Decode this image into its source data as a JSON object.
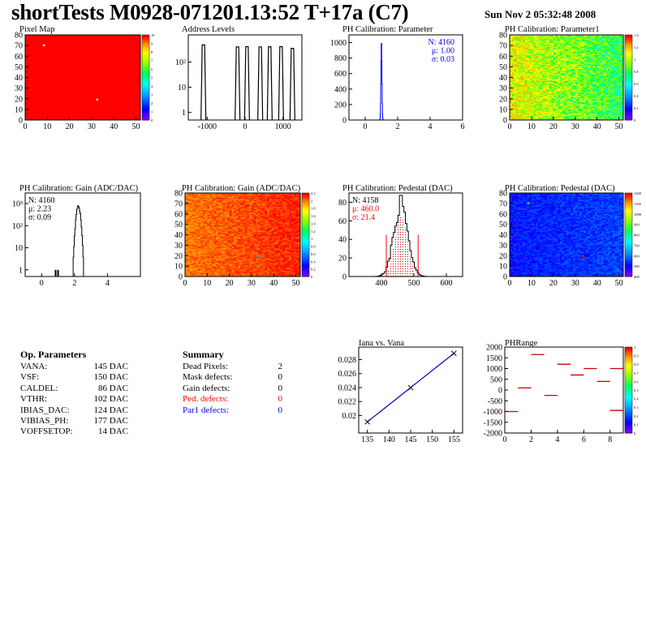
{
  "header": {
    "title": "shortTests M0928-071201.13:52 T+17a (C7)",
    "date": "Sun Nov  2 05:32:48 2008"
  },
  "op_parameters": {
    "title": "Op. Parameters",
    "rows": [
      {
        "name": "VANA:",
        "value": "145 DAC"
      },
      {
        "name": "VSF:",
        "value": "150 DAC"
      },
      {
        "name": "CALDEL:",
        "value": "86 DAC"
      },
      {
        "name": "VTHR:",
        "value": "102 DAC"
      },
      {
        "name": "IBIAS_DAC:",
        "value": "124 DAC"
      },
      {
        "name": "VIBIAS_PH:",
        "value": "177 DAC"
      },
      {
        "name": "VOFFSETOP:",
        "value": "14 DAC"
      }
    ]
  },
  "summary": {
    "title": "Summary",
    "rows": [
      {
        "name": "Dead Pixels:",
        "value": "2",
        "color": "#000000"
      },
      {
        "name": "Mask defects:",
        "value": "0",
        "color": "#000000"
      },
      {
        "name": "Gain defects:",
        "value": "0",
        "color": "#000000"
      },
      {
        "name": "Ped. defects:",
        "value": "0",
        "color": "#ff0000"
      },
      {
        "name": "Par1 defects:",
        "value": "0",
        "color": "#0000ff"
      }
    ]
  },
  "chart_data": [
    {
      "id": "pixel-map",
      "type": "heatmap",
      "title": "Pixel Map",
      "xlim": [
        0,
        52
      ],
      "ylim": [
        0,
        80
      ],
      "xticks": [
        "0",
        "10",
        "20",
        "30",
        "40",
        "50"
      ],
      "yticks": [
        "0",
        "10",
        "20",
        "30",
        "40",
        "50",
        "60",
        "70",
        "80"
      ],
      "colorbar_ticks": [
        "0",
        "1",
        "2",
        "3",
        "4",
        "5",
        "6",
        "7",
        "8",
        "9",
        "10"
      ],
      "fill": "uniform",
      "uniform_value": 10,
      "special_pixels": [
        {
          "x": 8,
          "y": 70,
          "value": 0
        },
        {
          "x": 32,
          "y": 19,
          "value": 0
        }
      ]
    },
    {
      "id": "address-levels",
      "type": "histogram",
      "title": "Address Levels",
      "xlim": [
        -1500,
        1500
      ],
      "yscale": "log",
      "ylim": [
        0.5,
        1200
      ],
      "xticks": [
        "-1000",
        "0",
        "1000"
      ],
      "yticks": [
        "1",
        "10",
        "10²"
      ],
      "peaks": [
        {
          "x": -1100,
          "count": 480
        },
        {
          "x": -200,
          "count": 400
        },
        {
          "x": 50,
          "count": 410
        },
        {
          "x": 400,
          "count": 400
        },
        {
          "x": 650,
          "count": 405
        },
        {
          "x": 950,
          "count": 410
        },
        {
          "x": 1250,
          "count": 350
        }
      ]
    },
    {
      "id": "ph-cal-parameter",
      "type": "histogram",
      "title": "PH Calibration: Parameter",
      "xlim": [
        -1,
        6
      ],
      "ylim": [
        0,
        1100
      ],
      "xticks": [
        "0",
        "2",
        "4",
        "6"
      ],
      "yticks": [
        "0",
        "200",
        "400",
        "600",
        "800",
        "1000"
      ],
      "stats": [
        {
          "label": "N: 4160",
          "color": "#0000ff"
        },
        {
          "label": "μ: 1.00",
          "color": "#0000ff"
        },
        {
          "label": "σ: 0.03",
          "color": "#0000ff"
        }
      ],
      "gaussian": {
        "mean": 1.0,
        "sigma": 0.03,
        "peak": 1020,
        "color": "#0000ff"
      }
    },
    {
      "id": "ph-cal-parameter1",
      "type": "heatmap",
      "title": "PH Calibration: Parameter1",
      "xlim": [
        0,
        52
      ],
      "ylim": [
        0,
        80
      ],
      "xticks": [
        "0",
        "10",
        "20",
        "30",
        "40",
        "50"
      ],
      "yticks": [
        "0",
        "10",
        "20",
        "30",
        "40",
        "50",
        "60",
        "70",
        "80"
      ],
      "colorbar_ticks": [
        "0",
        "0.2",
        "0.4",
        "0.6",
        "0.8",
        "1",
        "1.2",
        "1.4"
      ],
      "fill": "noise",
      "base": 0.78,
      "gradient": -0.22,
      "noise": 0.14
    },
    {
      "id": "ph-cal-gain",
      "type": "histogram",
      "title": "PH Calibration: Gain (ADC/DAC)",
      "xlim": [
        -1,
        6
      ],
      "yscale": "log",
      "ylim": [
        0.5,
        3000
      ],
      "xticks": [
        "0",
        "2",
        "4"
      ],
      "yticks": [
        "1",
        "10",
        "10²",
        "10³"
      ],
      "stats": [
        {
          "label": "N: 4160",
          "color": "#000000"
        },
        {
          "label": "μ: 2.23",
          "color": "#000000"
        },
        {
          "label": "σ: 0.09",
          "color": "#000000"
        }
      ],
      "gaussian": {
        "mean": 2.23,
        "sigma": 0.09,
        "peak": 800,
        "color": "#000000"
      },
      "outliers": [
        {
          "x": 0.8,
          "count": 1
        },
        {
          "x": 0.95,
          "count": 1
        }
      ]
    },
    {
      "id": "ph-cal-gain-map",
      "type": "heatmap",
      "title": "PH Calibration: Gain (ADC/DAC)",
      "xlim": [
        0,
        52
      ],
      "ylim": [
        0,
        80
      ],
      "xticks": [
        "0",
        "10",
        "20",
        "30",
        "40",
        "50"
      ],
      "yticks": [
        "0",
        "10",
        "20",
        "30",
        "40",
        "50",
        "60",
        "70",
        "80"
      ],
      "colorbar_ticks": [
        "0",
        "0.2",
        "0.4",
        "0.6",
        "0.8",
        "1",
        "1.2",
        "1.4",
        "1.6",
        "1.8",
        "2",
        "2.2"
      ],
      "fill": "noise",
      "base": 0.92,
      "gradient": 0.06,
      "noise": 0.04,
      "special_pixels": [
        {
          "x": 33,
          "y": 19,
          "value": 0.3
        }
      ]
    },
    {
      "id": "ph-cal-pedestal",
      "type": "histogram",
      "title": "PH Calibration: Pedestal (DAC)",
      "xlim": [
        300,
        650
      ],
      "ylim": [
        0,
        90
      ],
      "xticks": [
        "400",
        "500",
        "600"
      ],
      "yticks": [
        "0",
        "20",
        "40",
        "60",
        "80"
      ],
      "stats": [
        {
          "label": "N: 4158",
          "color": "#000000"
        },
        {
          "label": "μ: 460.0",
          "color": "#ff0000"
        },
        {
          "label": "σ: 21.4",
          "color": "#ff0000"
        }
      ],
      "gaussian": {
        "mean": 460,
        "sigma": 21.4,
        "peak": 78,
        "color": "#000000"
      },
      "cut_lines": [
        {
          "x": 415,
          "height": 45
        },
        {
          "x": 513,
          "height": 45
        }
      ]
    },
    {
      "id": "ph-cal-pedestal-map",
      "type": "heatmap",
      "title": "PH Calibration: Pedestal (DAC)",
      "xlim": [
        0,
        52
      ],
      "ylim": [
        0,
        80
      ],
      "xticks": [
        "0",
        "10",
        "20",
        "30",
        "40",
        "50"
      ],
      "yticks": [
        "0",
        "10",
        "20",
        "30",
        "40",
        "50",
        "60",
        "70",
        "80"
      ],
      "colorbar_ticks": [
        "400",
        "500",
        "600",
        "700",
        "800",
        "900",
        "1000",
        "1100",
        "1200"
      ],
      "fill": "noise",
      "base": 0.14,
      "gradient": 0.05,
      "noise": 0.06,
      "special_pixels": [
        {
          "x": 33,
          "y": 19,
          "value": 1.0
        },
        {
          "x": 8,
          "y": 70,
          "value": 0.6
        }
      ]
    },
    {
      "id": "iana-vana",
      "type": "line",
      "title": "Iana vs. Vana",
      "xlim": [
        133,
        157
      ],
      "ylim": [
        0.0175,
        0.0298
      ],
      "xticks": [
        "135",
        "140",
        "145",
        "150",
        "155"
      ],
      "yticks": [
        "0.02",
        "0.022",
        "0.024",
        "0.026",
        "0.028"
      ],
      "x": [
        135,
        145,
        155
      ],
      "y": [
        0.0191,
        0.024,
        0.0289
      ]
    },
    {
      "id": "phrange",
      "type": "scatter",
      "title": "PHRange",
      "xlim": [
        0,
        9
      ],
      "ylim": [
        -2000,
        2000
      ],
      "xticks": [
        "0",
        "2",
        "4",
        "6",
        "8"
      ],
      "yticks": [
        "-2000",
        "-1500",
        "-1000",
        "-500",
        "0",
        "500",
        "1000",
        "1500",
        "2000"
      ],
      "colorbar_ticks": [
        "0",
        "0.1",
        "0.2",
        "0.3",
        "0.4",
        "0.5",
        "0.6",
        "0.7",
        "0.8",
        "0.9",
        "1"
      ],
      "x": [
        0.5,
        1.5,
        2.5,
        3.5,
        4.5,
        5.5,
        6.5,
        7.5,
        8.5
      ],
      "y": [
        -1000,
        100,
        1650,
        -250,
        1200,
        700,
        1000,
        400,
        1000
      ],
      "extra_x": [
        8.5
      ],
      "extra_y": [
        -950
      ]
    }
  ]
}
